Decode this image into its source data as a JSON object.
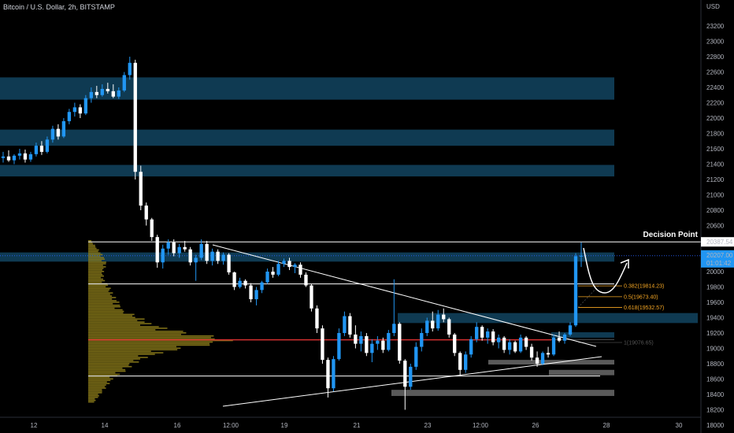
{
  "colors": {
    "background": "#000000",
    "up_candle": "#2196f3",
    "down_candle": "#ffffff",
    "zone": "#0f3a52",
    "grey_zone": "#5a5a5a",
    "fib": "#f5a623",
    "volume_profile": "#8a7a1a",
    "poc_line": "#d32f2f",
    "arrow": "#ffffff"
  },
  "chart_data": {
    "type": "candlestick",
    "title": "Bitcoin / U.S. Dollar, 2h, BITSTAMP",
    "currency": "USD",
    "ylim": [
      18000,
      23300
    ],
    "y_ticks": [
      23200,
      23000,
      22800,
      22600,
      22400,
      22200,
      22000,
      21800,
      21600,
      21400,
      21200,
      21000,
      20800,
      20600,
      20400,
      20200,
      20000,
      19800,
      19600,
      19400,
      19200,
      19000,
      18800,
      18600,
      18400,
      18200,
      18000
    ],
    "x_ticks": [
      "12",
      "14",
      "16",
      "12:00",
      "19",
      "21",
      "23",
      "12:00",
      "26",
      "28",
      "30"
    ],
    "price_labels": [
      {
        "name": "decision-level",
        "value": 20387.54,
        "text": "20387.54"
      },
      {
        "name": "current-price",
        "value": 20207,
        "text": "20207.00",
        "countdown": "01:01:42"
      }
    ],
    "annotations": {
      "decision_point": "Decision Point",
      "fib_levels": [
        {
          "ratio": "0.382",
          "price": 19814.23,
          "text": "0.382(19814.23)"
        },
        {
          "ratio": "0.5",
          "price": 19673.4,
          "text": "0.5(19673.40)"
        },
        {
          "ratio": "0.618",
          "price": 19532.57,
          "text": "0.618(19532.57)"
        }
      ],
      "fib_base": {
        "ratio": "1",
        "price": 19076.65,
        "text": "1(19076.65)"
      }
    },
    "horizontal_levels": [
      20387.54,
      19840,
      18640
    ],
    "poc_level": 19112,
    "supply_zones": [
      {
        "low": 22240,
        "high": 22530
      },
      {
        "low": 21640,
        "high": 21850
      },
      {
        "low": 21240,
        "high": 21390
      },
      {
        "low": 20130,
        "high": 20250
      },
      {
        "low": 19330,
        "high": 19460
      },
      {
        "low": 19140,
        "high": 19210
      }
    ],
    "grey_zones": [
      {
        "low": 18790,
        "high": 18850
      },
      {
        "low": 18650,
        "high": 18720
      },
      {
        "low": 18380,
        "high": 18460
      }
    ],
    "candles": [
      {
        "o": 21480,
        "h": 21560,
        "l": 21420,
        "c": 21500
      },
      {
        "o": 21500,
        "h": 21580,
        "l": 21430,
        "c": 21450
      },
      {
        "o": 21450,
        "h": 21530,
        "l": 21400,
        "c": 21510
      },
      {
        "o": 21510,
        "h": 21600,
        "l": 21460,
        "c": 21540
      },
      {
        "o": 21540,
        "h": 21590,
        "l": 21420,
        "c": 21460
      },
      {
        "o": 21460,
        "h": 21560,
        "l": 21430,
        "c": 21530
      },
      {
        "o": 21530,
        "h": 21680,
        "l": 21500,
        "c": 21640
      },
      {
        "o": 21640,
        "h": 21700,
        "l": 21520,
        "c": 21560
      },
      {
        "o": 21560,
        "h": 21760,
        "l": 21540,
        "c": 21720
      },
      {
        "o": 21720,
        "h": 21900,
        "l": 21680,
        "c": 21860
      },
      {
        "o": 21860,
        "h": 21920,
        "l": 21720,
        "c": 21760
      },
      {
        "o": 21760,
        "h": 22000,
        "l": 21740,
        "c": 21960
      },
      {
        "o": 21960,
        "h": 22120,
        "l": 21920,
        "c": 22080
      },
      {
        "o": 22080,
        "h": 22200,
        "l": 22020,
        "c": 22140
      },
      {
        "o": 22140,
        "h": 22180,
        "l": 22000,
        "c": 22060
      },
      {
        "o": 22060,
        "h": 22300,
        "l": 22040,
        "c": 22260
      },
      {
        "o": 22260,
        "h": 22400,
        "l": 22200,
        "c": 22340
      },
      {
        "o": 22340,
        "h": 22420,
        "l": 22260,
        "c": 22300
      },
      {
        "o": 22300,
        "h": 22440,
        "l": 22280,
        "c": 22380
      },
      {
        "o": 22380,
        "h": 22460,
        "l": 22320,
        "c": 22350
      },
      {
        "o": 22350,
        "h": 22440,
        "l": 22260,
        "c": 22280
      },
      {
        "o": 22280,
        "h": 22400,
        "l": 22250,
        "c": 22360
      },
      {
        "o": 22360,
        "h": 22600,
        "l": 22340,
        "c": 22560
      },
      {
        "o": 22560,
        "h": 22800,
        "l": 22500,
        "c": 22720
      },
      {
        "o": 22720,
        "h": 22760,
        "l": 21200,
        "c": 21300
      },
      {
        "o": 21300,
        "h": 21380,
        "l": 20800,
        "c": 20860
      },
      {
        "o": 20860,
        "h": 20900,
        "l": 20600,
        "c": 20680
      },
      {
        "o": 20680,
        "h": 20700,
        "l": 20400,
        "c": 20450
      },
      {
        "o": 20450,
        "h": 20480,
        "l": 20050,
        "c": 20120
      },
      {
        "o": 20120,
        "h": 20350,
        "l": 20040,
        "c": 20300
      },
      {
        "o": 20300,
        "h": 20420,
        "l": 20220,
        "c": 20380
      },
      {
        "o": 20380,
        "h": 20420,
        "l": 20200,
        "c": 20240
      },
      {
        "o": 20240,
        "h": 20360,
        "l": 20180,
        "c": 20320
      },
      {
        "o": 20320,
        "h": 20400,
        "l": 20260,
        "c": 20290
      },
      {
        "o": 20290,
        "h": 20320,
        "l": 20080,
        "c": 20120
      },
      {
        "o": 20120,
        "h": 20220,
        "l": 19880,
        "c": 20180
      },
      {
        "o": 20180,
        "h": 20420,
        "l": 20150,
        "c": 20360
      },
      {
        "o": 20360,
        "h": 20400,
        "l": 20100,
        "c": 20140
      },
      {
        "o": 20140,
        "h": 20300,
        "l": 20080,
        "c": 20260
      },
      {
        "o": 20260,
        "h": 20290,
        "l": 20100,
        "c": 20140
      },
      {
        "o": 20140,
        "h": 20250,
        "l": 20090,
        "c": 20220
      },
      {
        "o": 20220,
        "h": 20240,
        "l": 19960,
        "c": 19990
      },
      {
        "o": 19990,
        "h": 20000,
        "l": 19760,
        "c": 19800
      },
      {
        "o": 19800,
        "h": 19920,
        "l": 19780,
        "c": 19880
      },
      {
        "o": 19880,
        "h": 19900,
        "l": 19780,
        "c": 19820
      },
      {
        "o": 19820,
        "h": 19850,
        "l": 19600,
        "c": 19640
      },
      {
        "o": 19640,
        "h": 19800,
        "l": 19560,
        "c": 19760
      },
      {
        "o": 19760,
        "h": 19880,
        "l": 19720,
        "c": 19860
      },
      {
        "o": 19860,
        "h": 20040,
        "l": 19840,
        "c": 20000
      },
      {
        "o": 20000,
        "h": 20060,
        "l": 19920,
        "c": 19960
      },
      {
        "o": 19960,
        "h": 20140,
        "l": 19940,
        "c": 20100
      },
      {
        "o": 20100,
        "h": 20170,
        "l": 20060,
        "c": 20140
      },
      {
        "o": 20140,
        "h": 20180,
        "l": 20020,
        "c": 20060
      },
      {
        "o": 20060,
        "h": 20110,
        "l": 19980,
        "c": 20090
      },
      {
        "o": 20090,
        "h": 20120,
        "l": 19920,
        "c": 19960
      },
      {
        "o": 19960,
        "h": 19990,
        "l": 19800,
        "c": 19820
      },
      {
        "o": 19820,
        "h": 19840,
        "l": 19480,
        "c": 19520
      },
      {
        "o": 19520,
        "h": 19560,
        "l": 19200,
        "c": 19260
      },
      {
        "o": 19260,
        "h": 19300,
        "l": 18800,
        "c": 18850
      },
      {
        "o": 18850,
        "h": 18880,
        "l": 18360,
        "c": 18480
      },
      {
        "o": 18480,
        "h": 18900,
        "l": 18440,
        "c": 18860
      },
      {
        "o": 18860,
        "h": 19260,
        "l": 18840,
        "c": 19200
      },
      {
        "o": 19200,
        "h": 19480,
        "l": 19160,
        "c": 19420
      },
      {
        "o": 19420,
        "h": 19460,
        "l": 19140,
        "c": 19180
      },
      {
        "o": 19180,
        "h": 19300,
        "l": 19000,
        "c": 19060
      },
      {
        "o": 19060,
        "h": 19220,
        "l": 18960,
        "c": 19160
      },
      {
        "o": 19160,
        "h": 19200,
        "l": 18900,
        "c": 18940
      },
      {
        "o": 18940,
        "h": 19120,
        "l": 18820,
        "c": 19060
      },
      {
        "o": 19060,
        "h": 19160,
        "l": 18980,
        "c": 19100
      },
      {
        "o": 19100,
        "h": 19140,
        "l": 18940,
        "c": 18980
      },
      {
        "o": 18980,
        "h": 19240,
        "l": 18960,
        "c": 19200
      },
      {
        "o": 19200,
        "h": 19900,
        "l": 19160,
        "c": 19320
      },
      {
        "o": 19320,
        "h": 19340,
        "l": 18800,
        "c": 18840
      },
      {
        "o": 18840,
        "h": 18860,
        "l": 18200,
        "c": 18500
      },
      {
        "o": 18500,
        "h": 18800,
        "l": 18460,
        "c": 18760
      },
      {
        "o": 18760,
        "h": 19080,
        "l": 18720,
        "c": 19020
      },
      {
        "o": 19020,
        "h": 19260,
        "l": 18960,
        "c": 19200
      },
      {
        "o": 19200,
        "h": 19400,
        "l": 19160,
        "c": 19360
      },
      {
        "o": 19360,
        "h": 19480,
        "l": 19220,
        "c": 19260
      },
      {
        "o": 19260,
        "h": 19500,
        "l": 19230,
        "c": 19440
      },
      {
        "o": 19440,
        "h": 19520,
        "l": 19340,
        "c": 19380
      },
      {
        "o": 19380,
        "h": 19400,
        "l": 19140,
        "c": 19180
      },
      {
        "o": 19180,
        "h": 19200,
        "l": 18900,
        "c": 18940
      },
      {
        "o": 18940,
        "h": 18960,
        "l": 18640,
        "c": 18720
      },
      {
        "o": 18720,
        "h": 18960,
        "l": 18680,
        "c": 18920
      },
      {
        "o": 18920,
        "h": 19160,
        "l": 18880,
        "c": 19120
      },
      {
        "o": 19120,
        "h": 19340,
        "l": 19080,
        "c": 19280
      },
      {
        "o": 19280,
        "h": 19300,
        "l": 19100,
        "c": 19140
      },
      {
        "o": 19140,
        "h": 19260,
        "l": 19060,
        "c": 19220
      },
      {
        "o": 19220,
        "h": 19250,
        "l": 19040,
        "c": 19080
      },
      {
        "o": 19080,
        "h": 19180,
        "l": 19000,
        "c": 19140
      },
      {
        "o": 19140,
        "h": 19160,
        "l": 18940,
        "c": 18980
      },
      {
        "o": 18980,
        "h": 19120,
        "l": 18920,
        "c": 19080
      },
      {
        "o": 19080,
        "h": 19100,
        "l": 18940,
        "c": 18960
      },
      {
        "o": 18960,
        "h": 19180,
        "l": 18940,
        "c": 19140
      },
      {
        "o": 19140,
        "h": 19160,
        "l": 18980,
        "c": 19020
      },
      {
        "o": 19020,
        "h": 19060,
        "l": 18840,
        "c": 18880
      },
      {
        "o": 18880,
        "h": 18960,
        "l": 18760,
        "c": 18800
      },
      {
        "o": 18800,
        "h": 18960,
        "l": 18780,
        "c": 18940
      },
      {
        "o": 18940,
        "h": 19020,
        "l": 18880,
        "c": 18920
      },
      {
        "o": 18920,
        "h": 19180,
        "l": 18900,
        "c": 19140
      },
      {
        "o": 19140,
        "h": 19220,
        "l": 19080,
        "c": 19100
      },
      {
        "o": 19100,
        "h": 19200,
        "l": 19060,
        "c": 19180
      },
      {
        "o": 19180,
        "h": 19340,
        "l": 19160,
        "c": 19300
      },
      {
        "o": 19300,
        "h": 20240,
        "l": 19280,
        "c": 20200
      },
      {
        "o": 20200,
        "h": 20380,
        "l": 20060,
        "c": 20207
      }
    ],
    "volume_profile": {
      "range": [
        18300,
        20400
      ],
      "step": 20,
      "levels": [
        {
          "y": 18300,
          "v": 0.04
        },
        {
          "y": 18400,
          "v": 0.08
        },
        {
          "y": 18500,
          "v": 0.12
        },
        {
          "y": 18600,
          "v": 0.16
        },
        {
          "y": 18700,
          "v": 0.24
        },
        {
          "y": 18800,
          "v": 0.3
        },
        {
          "y": 18900,
          "v": 0.4
        },
        {
          "y": 19000,
          "v": 0.62
        },
        {
          "y": 19100,
          "v": 1.0
        },
        {
          "y": 19200,
          "v": 0.66
        },
        {
          "y": 19300,
          "v": 0.42
        },
        {
          "y": 19400,
          "v": 0.34
        },
        {
          "y": 19500,
          "v": 0.22
        },
        {
          "y": 19600,
          "v": 0.2
        },
        {
          "y": 19700,
          "v": 0.16
        },
        {
          "y": 19800,
          "v": 0.14
        },
        {
          "y": 19900,
          "v": 0.1
        },
        {
          "y": 20000,
          "v": 0.1
        },
        {
          "y": 20100,
          "v": 0.12
        },
        {
          "y": 20200,
          "v": 0.1
        },
        {
          "y": 20300,
          "v": 0.06
        },
        {
          "y": 20400,
          "v": 0.02
        }
      ]
    }
  }
}
